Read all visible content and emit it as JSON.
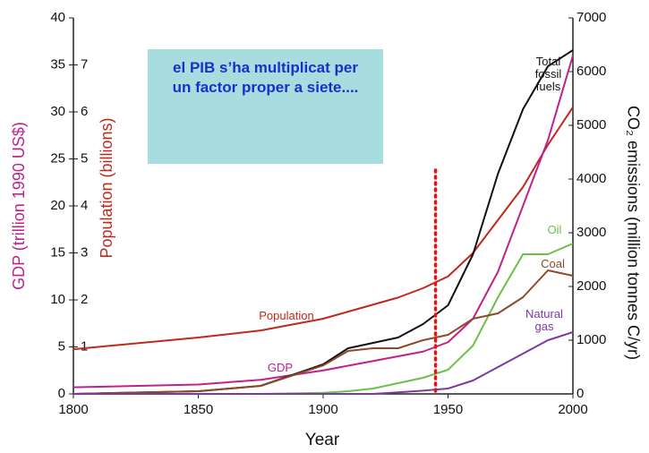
{
  "chart_data": {
    "type": "line",
    "xlabel": "Year",
    "ylabel": "GDP (trillion 1990 US$)",
    "y3label": "Population (billions)",
    "y2label": "CO₂ emissions (million tonnes C/yr)",
    "annotation": "el PIB s’ha multiplicat per un factor proper a siete....",
    "vline_x": 1945,
    "vline_color": "#ee1111",
    "xlim": [
      1800,
      2000
    ],
    "xticks": [
      1800,
      1850,
      1900,
      1950,
      2000
    ],
    "ylim": [
      0,
      40
    ],
    "yticks": [
      0,
      5,
      10,
      15,
      20,
      25,
      30,
      35,
      40
    ],
    "y3lim": [
      0,
      8
    ],
    "y3ticks": [
      1,
      2,
      3,
      4,
      5,
      6,
      7
    ],
    "y2lim": [
      0,
      7000
    ],
    "y2ticks": [
      0,
      1000,
      2000,
      3000,
      4000,
      5000,
      6000,
      7000
    ],
    "x": [
      1800,
      1850,
      1875,
      1900,
      1910,
      1920,
      1930,
      1940,
      1950,
      1960,
      1970,
      1980,
      1990,
      2000
    ],
    "series": [
      {
        "name": "Population",
        "color": "#c0281e",
        "axis": "y3",
        "values": [
          0.95,
          1.2,
          1.35,
          1.6,
          1.75,
          1.9,
          2.05,
          2.25,
          2.5,
          3.0,
          3.7,
          4.4,
          5.3,
          6.1
        ]
      },
      {
        "name": "GDP",
        "color": "#c0218a",
        "axis": "y",
        "values": [
          0.7,
          1.0,
          1.5,
          2.5,
          3.0,
          3.5,
          4.0,
          4.5,
          5.5,
          8.0,
          13.0,
          20.0,
          27.0,
          36.0
        ]
      },
      {
        "name": "Total fossil fuels",
        "color": "#111111",
        "axis": "y2",
        "values": [
          0,
          50,
          150,
          550,
          850,
          950,
          1050,
          1300,
          1650,
          2600,
          4100,
          5300,
          6100,
          6400
        ]
      },
      {
        "name": "Oil",
        "color": "#6cc04a",
        "axis": "y2",
        "values": [
          0,
          0,
          0,
          20,
          50,
          100,
          200,
          300,
          450,
          900,
          1800,
          2600,
          2600,
          2800
        ]
      },
      {
        "name": "Coal",
        "color": "#8b4a2a",
        "axis": "y2",
        "values": [
          0,
          50,
          150,
          530,
          800,
          850,
          850,
          1000,
          1100,
          1400,
          1500,
          1800,
          2300,
          2200
        ]
      },
      {
        "name": "Natural gas",
        "color": "#7a3aa0",
        "axis": "y2",
        "values": [
          0,
          0,
          0,
          0,
          0,
          0,
          30,
          60,
          100,
          250,
          500,
          750,
          1000,
          1150
        ]
      }
    ]
  }
}
